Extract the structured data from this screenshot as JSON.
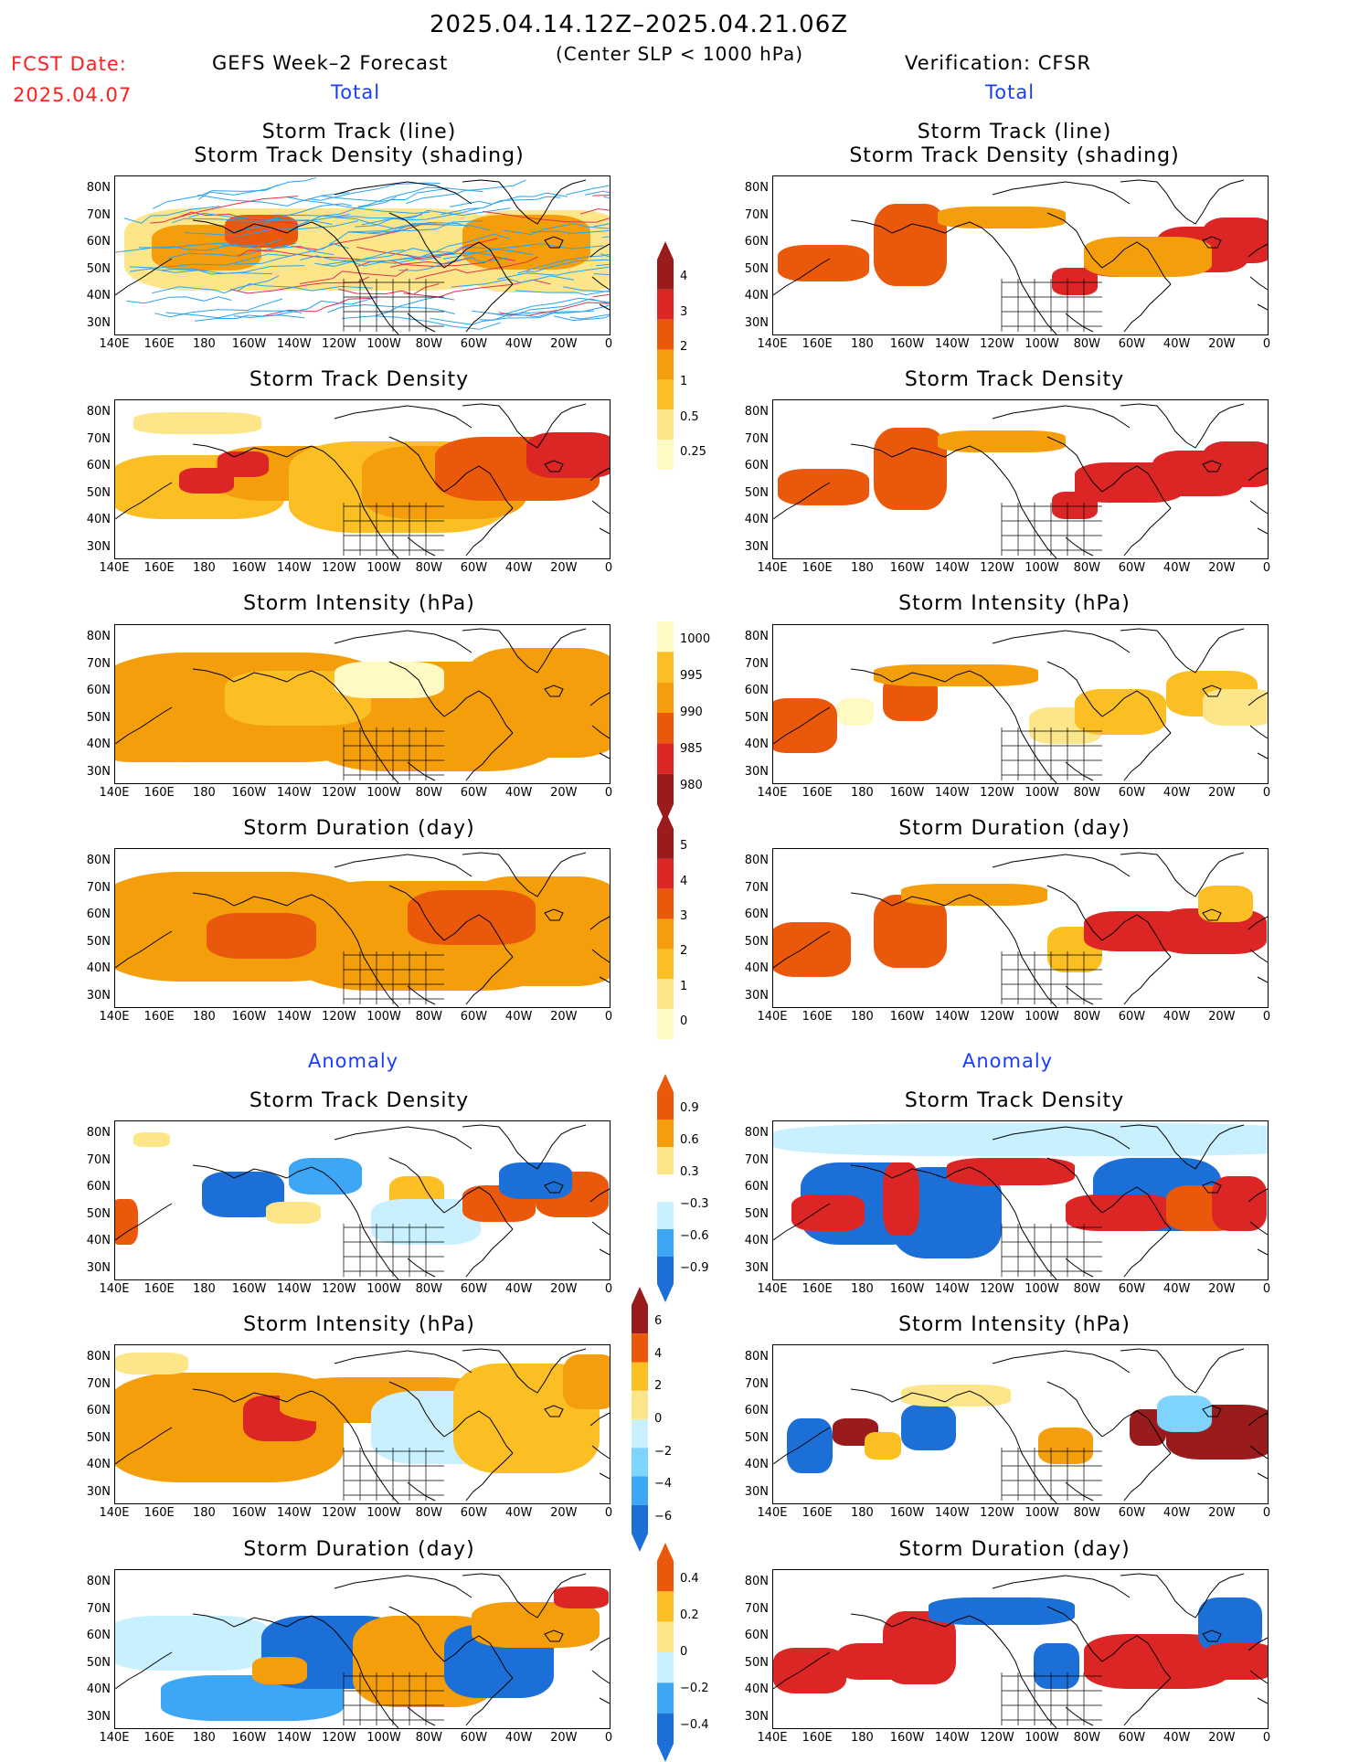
{
  "header": {
    "period": "2025.04.14.12Z–2025.04.21.06Z",
    "criterion": "(Center SLP < 1000 hPa)",
    "fcst_label": "FCST Date:",
    "fcst_date": "2025.04.07",
    "left_title": "GEFS Week–2 Forecast",
    "right_title": "Verification: CFSR",
    "total_label": "Total",
    "anomaly_label": "Anomaly"
  },
  "panel_titles": {
    "track": [
      "Storm Track (line)",
      "Storm Track Density (shading)"
    ],
    "density": "Storm Track Density",
    "intensity": "Storm Intensity (hPa)",
    "duration": "Storm Duration (day)"
  },
  "axes": {
    "lat_labels": [
      "80N",
      "70N",
      "60N",
      "50N",
      "40N",
      "30N"
    ],
    "lon_labels": [
      "140E",
      "160E",
      "180",
      "160W",
      "140W",
      "120W",
      "100W",
      "80W",
      "60W",
      "40W",
      "20W",
      "0"
    ]
  },
  "colorbars": {
    "density_total": [
      "4",
      "3",
      "2",
      "1",
      "0.5",
      "0.25"
    ],
    "intensity_total": [
      "1000",
      "995",
      "990",
      "985",
      "980"
    ],
    "duration_total": [
      "5",
      "4",
      "3",
      "2",
      "1",
      "0"
    ],
    "density_anom": [
      "0.9",
      "0.6",
      "0.3",
      "−0.3",
      "−0.6",
      "−0.9"
    ],
    "intensity_anom": [
      "6",
      "4",
      "2",
      "0",
      "−2",
      "−4",
      "−6"
    ],
    "duration_anom": [
      "0.4",
      "0.2",
      "0",
      "−0.2",
      "−0.4"
    ]
  },
  "colors": {
    "warm": [
      "#fff9c4",
      "#fde68a",
      "#fbbf24",
      "#f59e0b",
      "#ea580c",
      "#dc2626",
      "#991b1b"
    ],
    "cool": [
      "#c9f0ff",
      "#7fd3ff",
      "#3da7f5",
      "#1d6fd8"
    ],
    "track_line": "#29a3f0",
    "track_red": "#e0324a"
  }
}
